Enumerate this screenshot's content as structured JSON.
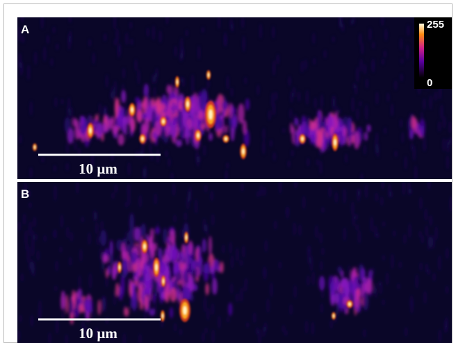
{
  "panels": [
    {
      "label": "A",
      "scale_bar": "10 µm"
    },
    {
      "label": "B",
      "scale_bar": "10 µm"
    }
  ],
  "colorbar": {
    "max_label": "255",
    "min_label": "0"
  }
}
